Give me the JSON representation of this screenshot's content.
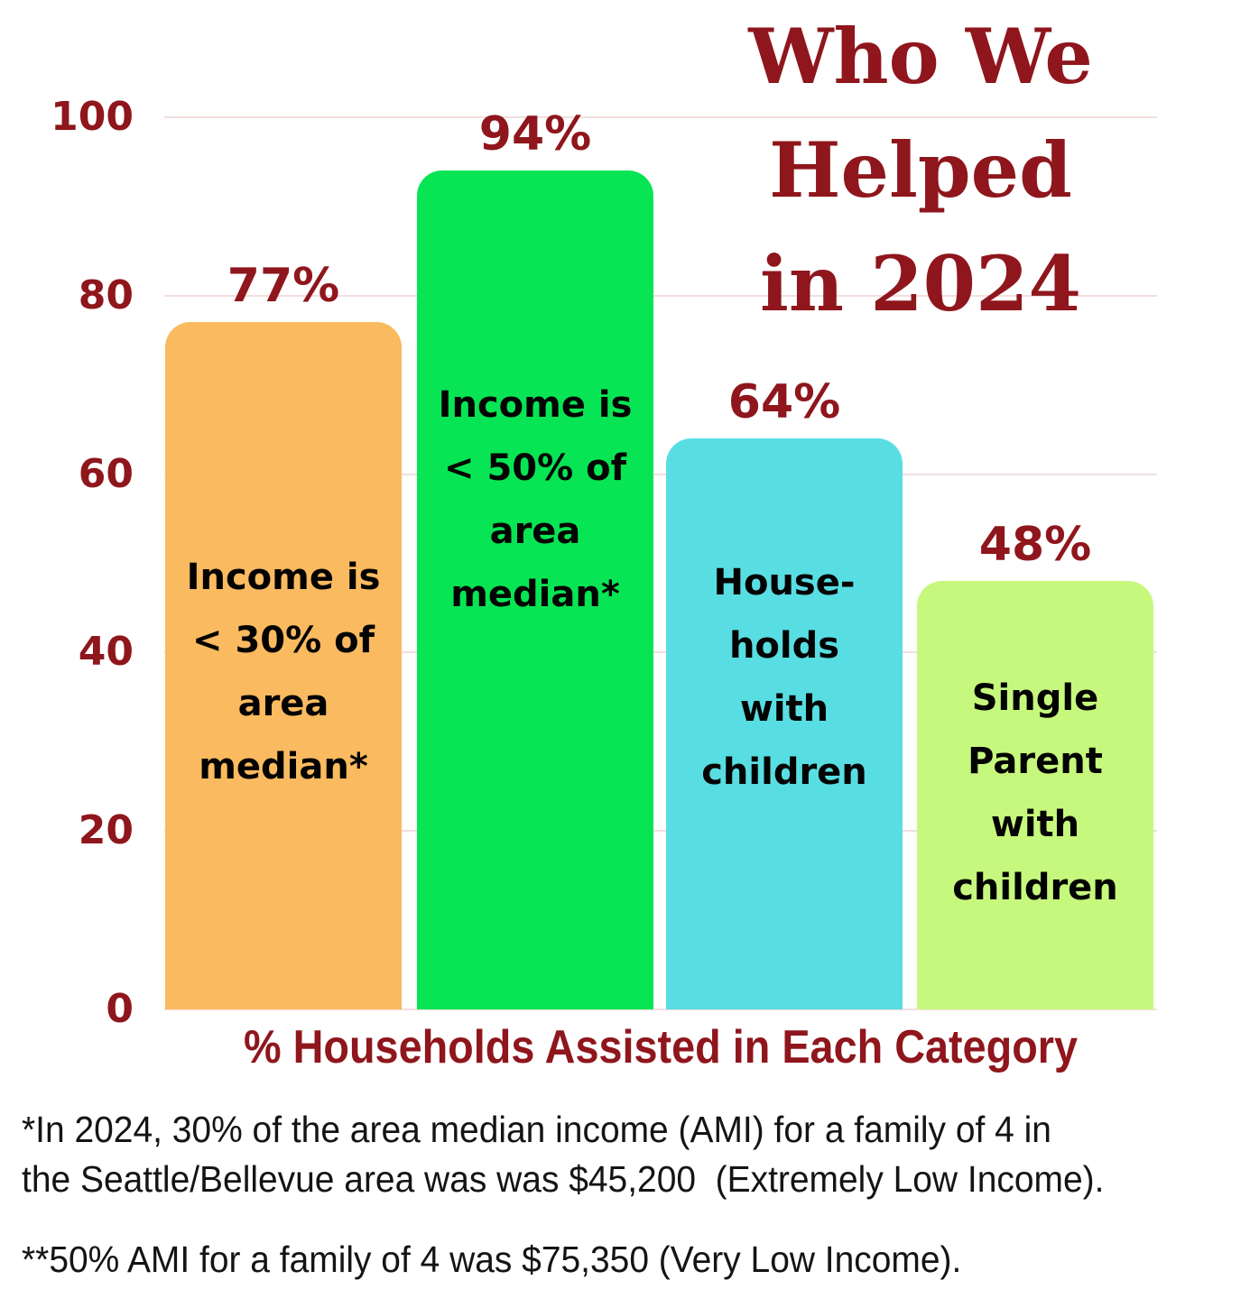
{
  "title": {
    "text": "Who We\nHelped\nin 2024"
  },
  "chart_data": {
    "type": "bar",
    "title": "Who We Helped in 2024",
    "xlabel": "% Households Assisted in Each Category",
    "ylabel": "",
    "categories": [
      "Income is\n< 30% of\narea\nmedian*",
      "Income is\n< 50% of\narea\nmedian*",
      "House-\nholds\nwith\nchildren",
      "Single\nParent\nwith\nchildren"
    ],
    "values": [
      77,
      94,
      64,
      48
    ],
    "value_labels": [
      "77%",
      "94%",
      "64%",
      "48%"
    ],
    "bar_colors": [
      "#FABA5F",
      "#07E554",
      "#58DEE2",
      "#C6F87D"
    ],
    "yticks": [
      0,
      20,
      40,
      60,
      80,
      100
    ],
    "ylim": [
      0,
      100
    ],
    "grid": "horizontal gridlines on",
    "legend": "none",
    "accent_color": "#8F161C",
    "gridline_color": "#F2DEDE"
  },
  "footnotes": [
    "*In 2024, 30% of the area median income (AMI) for a family of 4 in\nthe Seattle/Bellevue area was was $45,200  (Extremely Low Income).",
    "**50% AMI for a family of 4 was $75,350 (Very Low Income)."
  ]
}
